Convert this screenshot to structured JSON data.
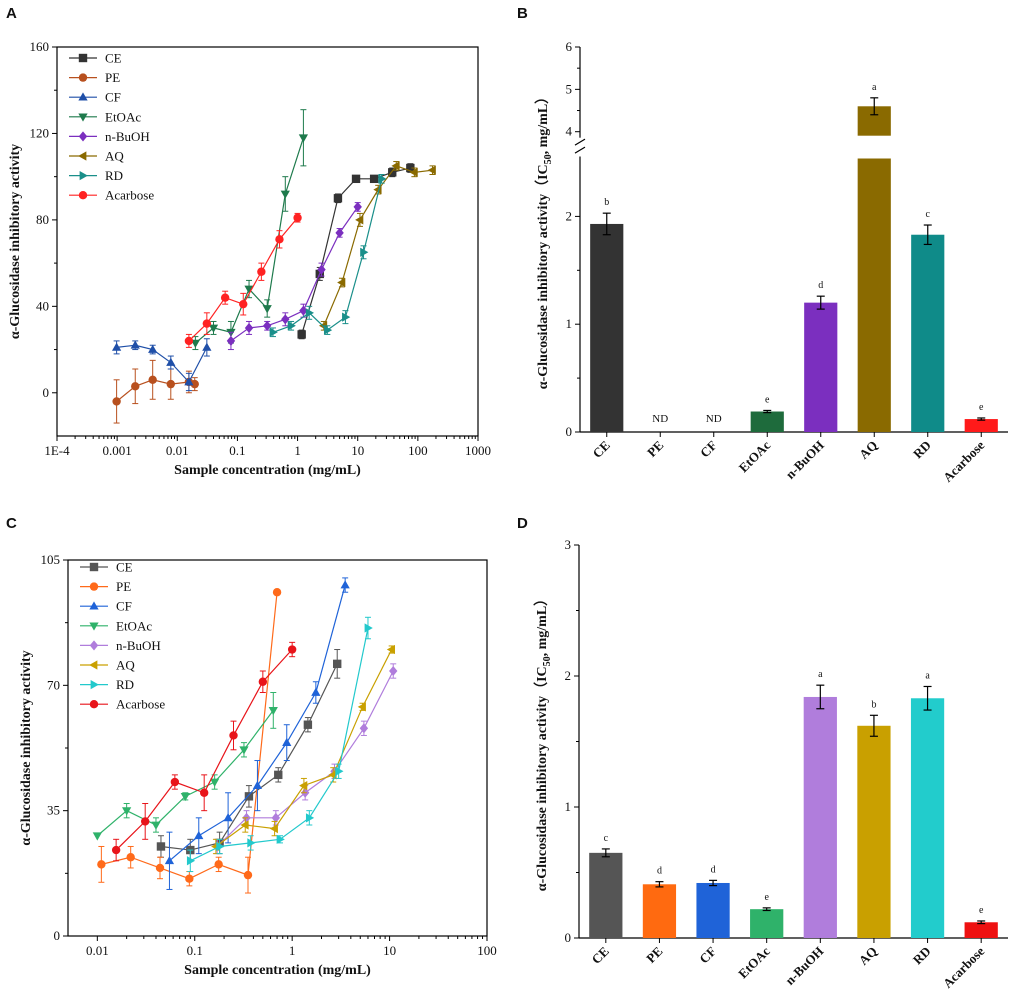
{
  "chart_data": [
    {
      "panel": "A",
      "type": "scatter",
      "xscale": "log",
      "xlabel": "Sample concentration (mg/mL)",
      "ylabel": "α-Glucosidase inhibitory activity",
      "xlim": [
        0.0001,
        1000
      ],
      "ylim": [
        -20,
        160
      ],
      "xticks": [
        0.0001,
        0.001,
        0.01,
        0.1,
        1,
        10,
        100,
        1000
      ],
      "xtick_labels": [
        "1E-4",
        "0.001",
        "0.01",
        "0.1",
        "1",
        "10",
        "100",
        "1000"
      ],
      "yticks": [
        0,
        40,
        80,
        120,
        160
      ],
      "legend": [
        "CE",
        "PE",
        "CF",
        "EtOAc",
        "n-BuOH",
        "AQ",
        "RD",
        "Acarbose"
      ],
      "series": [
        {
          "name": "CE",
          "color": "#333333",
          "marker": "square",
          "x": [
            1.17,
            2.34,
            4.69,
            9.38,
            18.75,
            37.5,
            75
          ],
          "y": [
            27,
            55,
            90,
            99,
            99,
            102,
            104
          ],
          "err": [
            2,
            3,
            2,
            1,
            1,
            2,
            2
          ]
        },
        {
          "name": "PE",
          "color": "#b8501e",
          "marker": "circle",
          "x": [
            0.00098,
            0.002,
            0.0039,
            0.0078,
            0.0156,
            0.0195
          ],
          "y": [
            -4,
            3,
            6,
            4,
            5,
            4
          ],
          "err": [
            10,
            8,
            9,
            7,
            5,
            3
          ]
        },
        {
          "name": "CF",
          "color": "#1f4fa8",
          "marker": "triangle-up",
          "x": [
            0.00098,
            0.002,
            0.0039,
            0.0078,
            0.0156,
            0.031
          ],
          "y": [
            21,
            22,
            20,
            14,
            5,
            21
          ],
          "err": [
            3,
            2,
            2,
            3,
            4,
            4
          ]
        },
        {
          "name": "EtOAc",
          "color": "#1e7a4c",
          "marker": "triangle-down",
          "x": [
            0.02,
            0.04,
            0.078,
            0.156,
            0.3125,
            0.625,
            1.25
          ],
          "y": [
            23,
            30,
            28,
            48,
            39,
            92,
            118
          ],
          "err": [
            3,
            3,
            5,
            4,
            4,
            8,
            13
          ]
        },
        {
          "name": "n-BuOH",
          "color": "#7b2fbf",
          "marker": "diamond",
          "x": [
            0.078,
            0.156,
            0.3125,
            0.625,
            1.25,
            2.5,
            5,
            10
          ],
          "y": [
            24,
            30,
            31,
            34,
            38,
            57,
            74,
            86
          ],
          "err": [
            4,
            3,
            2,
            3,
            3,
            3,
            2,
            2
          ]
        },
        {
          "name": "AQ",
          "color": "#8a6a00",
          "marker": "triangle-left",
          "x": [
            2.73,
            5.47,
            10.9,
            21.9,
            43.75,
            87.5,
            175
          ],
          "y": [
            31,
            51,
            80,
            94,
            105,
            102,
            103
          ],
          "err": [
            2,
            2,
            3,
            2,
            2,
            2,
            2
          ]
        },
        {
          "name": "RD",
          "color": "#1a8f8a",
          "marker": "triangle-right",
          "x": [
            0.39,
            0.78,
            1.56,
            3.125,
            6.25,
            12.5,
            25
          ],
          "y": [
            28,
            31,
            37,
            29,
            35,
            65,
            99
          ],
          "err": [
            2,
            2,
            3,
            2,
            3,
            3,
            2
          ]
        },
        {
          "name": "Acarbose",
          "color": "#ff2222",
          "marker": "circle",
          "x": [
            0.0156,
            0.031,
            0.0625,
            0.125,
            0.25,
            0.5,
            1
          ],
          "y": [
            24,
            32,
            44,
            41,
            56,
            71,
            81
          ],
          "err": [
            3,
            5,
            3,
            5,
            4,
            4,
            2
          ]
        }
      ]
    },
    {
      "panel": "B",
      "type": "bar",
      "xlabel": "",
      "ylabel": "α-Glucosidase inhibitory activity（IC50, mg/mL）",
      "ylabel_main": "α-Glucosidase inhibitory activity（IC",
      "ylabel_sub": "50",
      "ylabel_tail": ", mg/mL）",
      "axis_break": {
        "lower": [
          0,
          2.5
        ],
        "upper": [
          4,
          6
        ]
      },
      "yticks_lower": [
        0,
        1,
        2
      ],
      "yticks_upper": [
        4,
        5,
        6
      ],
      "categories": [
        "CE",
        "PE",
        "CF",
        "EtOAc",
        "n-BuOH",
        "AQ",
        "RD",
        "Acarbose"
      ],
      "values": [
        1.93,
        0,
        0,
        0.19,
        1.2,
        4.6,
        1.83,
        0.12
      ],
      "errors": [
        0.1,
        0,
        0,
        0.01,
        0.06,
        0.2,
        0.09,
        0.01
      ],
      "significance": [
        "b",
        "ND",
        "ND",
        "e",
        "d",
        "a",
        "c",
        "e"
      ],
      "colors": [
        "#333333",
        "#ffffff",
        "#ffffff",
        "#1e6b3c",
        "#7b2fbf",
        "#8a6a00",
        "#0f8b89",
        "#ff1a1a"
      ]
    },
    {
      "panel": "C",
      "type": "scatter",
      "xscale": "log",
      "xlabel": "Sample concentration (mg/mL)",
      "ylabel": "α-Glucosidase inhibitory activity",
      "xlim": [
        0.005,
        100
      ],
      "ylim": [
        0,
        105
      ],
      "xticks": [
        0.01,
        0.1,
        1,
        10,
        100
      ],
      "xtick_labels": [
        "0.01",
        "0.1",
        "1",
        "10",
        "100"
      ],
      "yticks": [
        0,
        35,
        70,
        105
      ],
      "legend": [
        "CE",
        "PE",
        "CF",
        "EtOAc",
        "n-BuOH",
        "AQ",
        "RD",
        "Acarbose"
      ],
      "series": [
        {
          "name": "CE",
          "color": "#555555",
          "marker": "square",
          "x": [
            0.045,
            0.09,
            0.18,
            0.36,
            0.72,
            1.45,
            2.9
          ],
          "y": [
            25,
            24,
            26,
            39,
            45,
            59,
            76
          ],
          "err": [
            3,
            3,
            3,
            3,
            2,
            2,
            4
          ]
        },
        {
          "name": "PE",
          "color": "#ff6a1a",
          "marker": "circle",
          "x": [
            0.011,
            0.022,
            0.044,
            0.088,
            0.176,
            0.352,
            0.7
          ],
          "y": [
            20,
            22,
            19,
            16,
            20,
            17,
            96
          ],
          "err": [
            5,
            3,
            3,
            2,
            2,
            5,
            0
          ]
        },
        {
          "name": "CF",
          "color": "#1f63d8",
          "marker": "triangle-up",
          "x": [
            0.055,
            0.11,
            0.22,
            0.44,
            0.88,
            1.75,
            3.5
          ],
          "y": [
            21,
            28,
            33,
            42,
            54,
            68,
            98
          ],
          "err": [
            8,
            5,
            7,
            7,
            5,
            3,
            2
          ]
        },
        {
          "name": "EtOAc",
          "color": "#2fb26a",
          "marker": "triangle-down",
          "x": [
            0.01,
            0.02,
            0.04,
            0.08,
            0.16,
            0.32,
            0.64
          ],
          "y": [
            28,
            35,
            31,
            39,
            43,
            52,
            63
          ],
          "err": [
            0,
            2,
            2,
            1,
            2,
            2,
            5
          ]
        },
        {
          "name": "n-BuOH",
          "color": "#b07ddc",
          "marker": "diamond",
          "x": [
            0.17,
            0.34,
            0.68,
            1.36,
            2.72,
            5.45,
            10.9
          ],
          "y": [
            25,
            33,
            33,
            40,
            46,
            58,
            74
          ],
          "err": [
            2,
            2,
            2,
            2,
            2,
            2,
            2
          ]
        },
        {
          "name": "AQ",
          "color": "#c9a000",
          "marker": "triangle-left",
          "x": [
            0.165,
            0.33,
            0.66,
            1.32,
            2.64,
            5.28,
            10.5
          ],
          "y": [
            25,
            31,
            30,
            42,
            45,
            64,
            80
          ],
          "err": [
            2,
            2,
            2,
            2,
            2,
            1,
            1
          ]
        },
        {
          "name": "RD",
          "color": "#22c9cc",
          "marker": "triangle-right",
          "x": [
            0.09,
            0.18,
            0.375,
            0.75,
            1.5,
            3,
            6
          ],
          "y": [
            21,
            25,
            26,
            27,
            33,
            46,
            86
          ],
          "err": [
            3,
            2,
            2,
            1,
            2,
            2,
            3
          ]
        },
        {
          "name": "Acarbose",
          "color": "#e8141a",
          "marker": "circle",
          "x": [
            0.0156,
            0.031,
            0.0625,
            0.125,
            0.25,
            0.5,
            1
          ],
          "y": [
            24,
            32,
            43,
            40,
            56,
            71,
            80
          ],
          "err": [
            3,
            5,
            2,
            5,
            4,
            3,
            2
          ]
        }
      ]
    },
    {
      "panel": "D",
      "type": "bar",
      "xlabel": "",
      "ylabel": "α-Glucosidase inhibitory activity（IC50, mg/mL）",
      "ylabel_main": "α-Glucosidase inhibitory activity（IC",
      "ylabel_sub": "50",
      "ylabel_tail": ", mg/mL）",
      "ylim": [
        0,
        3
      ],
      "yticks": [
        0,
        1,
        2,
        3
      ],
      "categories": [
        "CE",
        "PE",
        "CF",
        "EtOAc",
        "n-BuOH",
        "AQ",
        "RD",
        "Acarbose"
      ],
      "values": [
        0.65,
        0.41,
        0.42,
        0.22,
        1.84,
        1.62,
        1.83,
        0.12
      ],
      "errors": [
        0.03,
        0.02,
        0.02,
        0.01,
        0.09,
        0.08,
        0.09,
        0.01
      ],
      "significance": [
        "c",
        "d",
        "d",
        "e",
        "a",
        "b",
        "a",
        "e"
      ],
      "colors": [
        "#555555",
        "#ff6a10",
        "#1f63d8",
        "#2fb26a",
        "#b07ddc",
        "#c9a000",
        "#22cccc",
        "#ee1111"
      ]
    }
  ],
  "panel_labels": [
    "A",
    "B",
    "C",
    "D"
  ]
}
